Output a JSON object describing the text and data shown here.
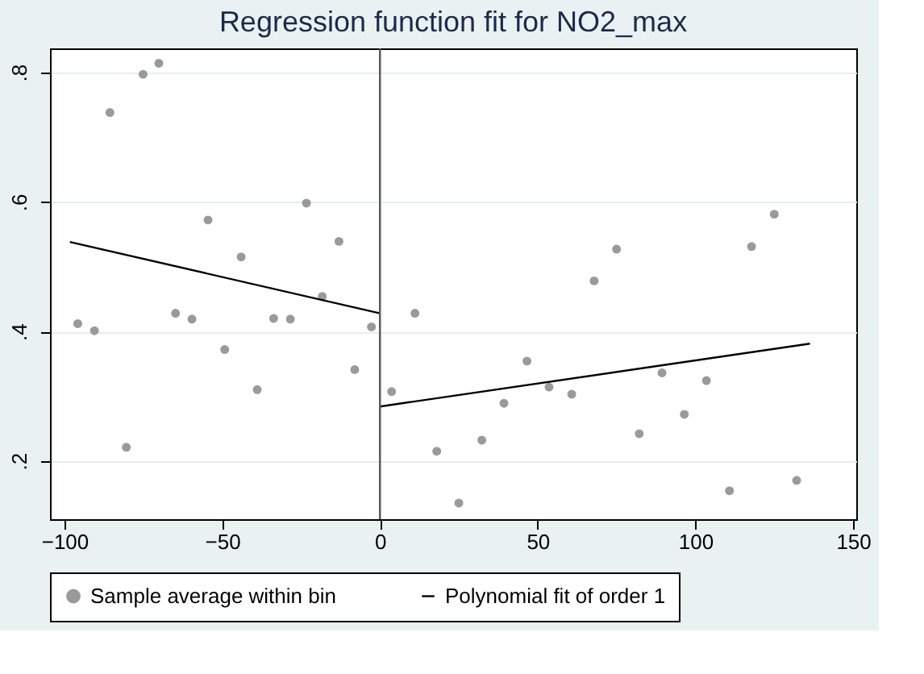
{
  "chart_data": {
    "type": "scatter",
    "title": "Regression function fit for NO2_max",
    "xlim": [
      -104.6,
      151
    ],
    "ylim": [
      0.11,
      0.837
    ],
    "xticks": [
      -100,
      -50,
      0,
      50,
      100,
      150
    ],
    "yticks": [
      {
        "value": 0.2,
        "label": ".2"
      },
      {
        "value": 0.4,
        "label": ".4"
      },
      {
        "value": 0.6,
        "label": ".6"
      },
      {
        "value": 0.8,
        "label": ".8"
      }
    ],
    "grid": "y",
    "legend": "bottom",
    "series": [
      {
        "name": "Sample average within bin",
        "marker": "circle",
        "color": "#9a9a9a",
        "x": [
          -95.8,
          -90.5,
          -85.6,
          -80.4,
          -75.1,
          -70.1,
          -64.8,
          -59.6,
          -54.5,
          -49.2,
          -44.0,
          -38.9,
          -33.7,
          -28.4,
          -23.3,
          -18.3,
          -13.0,
          -8.0,
          -2.7,
          3.7,
          11.1,
          18.0,
          25.0,
          32.3,
          39.3,
          46.6,
          53.6,
          60.8,
          67.9,
          75.0,
          82.2,
          89.4,
          96.5,
          103.5,
          110.8,
          117.8,
          125.0,
          132.1
        ],
        "values": [
          0.412,
          0.401,
          0.738,
          0.221,
          0.797,
          0.814,
          0.428,
          0.419,
          0.572,
          0.372,
          0.515,
          0.31,
          0.42,
          0.419,
          0.598,
          0.454,
          0.539,
          0.341,
          0.407,
          0.307,
          0.428,
          0.215,
          0.135,
          0.232,
          0.289,
          0.354,
          0.314,
          0.303,
          0.478,
          0.527,
          0.242,
          0.336,
          0.272,
          0.324,
          0.154,
          0.531,
          0.581,
          0.17
        ]
      },
      {
        "name": "Polynomial fit of order 1",
        "type": "line",
        "color": "#000000",
        "x": [
          -98.3,
          0
        ],
        "values": [
          0.538,
          0.428
        ]
      },
      {
        "type": "line",
        "color": "#000000",
        "x": [
          0,
          136.3
        ],
        "values": [
          0.284,
          0.381
        ]
      }
    ],
    "ref_lines": [
      {
        "axis": "x",
        "value": 0,
        "color": "#555555"
      }
    ]
  }
}
